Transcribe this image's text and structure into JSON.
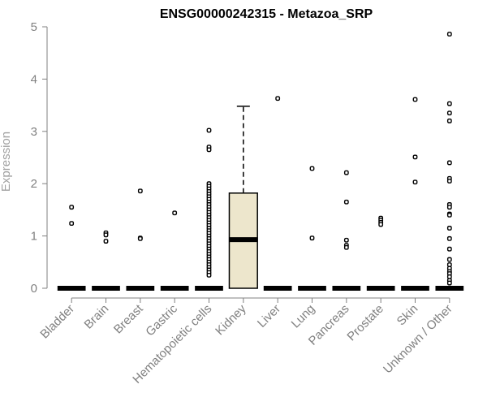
{
  "chart_data": {
    "type": "box",
    "title": "ENSG00000242315 - Metazoa_SRP",
    "ylabel": "Expression",
    "xlabel": "",
    "ylim": [
      0,
      5
    ],
    "yticks": [
      0,
      1,
      2,
      3,
      4,
      5
    ],
    "grid": false,
    "box_fill": "#ede6cc",
    "categories": [
      "Bladder",
      "Brain",
      "Breast",
      "Gastric",
      "Hematopoietic cells",
      "Kidney",
      "Liver",
      "Lung",
      "Pancreas",
      "Prostate",
      "Skin",
      "Unknown / Other"
    ],
    "series": [
      {
        "category": "Bladder",
        "min": 0,
        "q1": 0,
        "median": 0,
        "q3": 0,
        "max": 0,
        "outliers": [
          1.55,
          1.24
        ]
      },
      {
        "category": "Brain",
        "min": 0,
        "q1": 0,
        "median": 0,
        "q3": 0,
        "max": 0,
        "outliers": [
          1.06,
          1.02,
          0.9
        ]
      },
      {
        "category": "Breast",
        "min": 0,
        "q1": 0,
        "median": 0,
        "q3": 0,
        "max": 0,
        "outliers": [
          1.86,
          0.96,
          0.95
        ]
      },
      {
        "category": "Gastric",
        "min": 0,
        "q1": 0,
        "median": 0,
        "q3": 0,
        "max": 0,
        "outliers": [
          1.44
        ]
      },
      {
        "category": "Hematopoietic cells",
        "min": 0,
        "q1": 0,
        "median": 0,
        "q3": 0,
        "max": 0,
        "outliers": [
          3.02,
          2.7,
          2.65,
          2.0,
          1.95,
          1.9,
          1.85,
          1.8,
          1.75,
          1.7,
          1.65,
          1.6,
          1.55,
          1.5,
          1.45,
          1.4,
          1.35,
          1.3,
          1.25,
          1.2,
          1.15,
          1.1,
          1.05,
          1.0,
          0.95,
          0.9,
          0.85,
          0.8,
          0.75,
          0.7,
          0.65,
          0.6,
          0.55,
          0.5,
          0.45,
          0.4,
          0.35,
          0.3,
          0.25
        ]
      },
      {
        "category": "Kidney",
        "min": 0,
        "q1": 0,
        "median": 0.93,
        "q3": 1.82,
        "max": 3.48,
        "outliers": []
      },
      {
        "category": "Liver",
        "min": 0,
        "q1": 0,
        "median": 0,
        "q3": 0,
        "max": 0,
        "outliers": [
          3.63
        ]
      },
      {
        "category": "Lung",
        "min": 0,
        "q1": 0,
        "median": 0,
        "q3": 0,
        "max": 0,
        "outliers": [
          2.29,
          0.96
        ]
      },
      {
        "category": "Pancreas",
        "min": 0,
        "q1": 0,
        "median": 0,
        "q3": 0,
        "max": 0,
        "outliers": [
          2.21,
          1.65,
          0.92,
          0.82,
          0.78
        ]
      },
      {
        "category": "Prostate",
        "min": 0,
        "q1": 0,
        "median": 0,
        "q3": 0,
        "max": 0,
        "outliers": [
          1.34,
          1.3,
          1.26,
          1.22
        ]
      },
      {
        "category": "Skin",
        "min": 0,
        "q1": 0,
        "median": 0,
        "q3": 0,
        "max": 0,
        "outliers": [
          3.61,
          2.51,
          2.03
        ]
      },
      {
        "category": "Unknown / Other",
        "min": 0,
        "q1": 0,
        "median": 0,
        "q3": 0,
        "max": 0,
        "outliers": [
          4.86,
          3.53,
          3.35,
          3.2,
          2.4,
          2.1,
          2.05,
          1.6,
          1.55,
          1.42,
          1.4,
          1.15,
          0.95,
          0.75,
          0.55,
          0.45,
          0.38,
          0.32,
          0.28,
          0.22,
          0.15,
          0.1
        ]
      }
    ]
  }
}
